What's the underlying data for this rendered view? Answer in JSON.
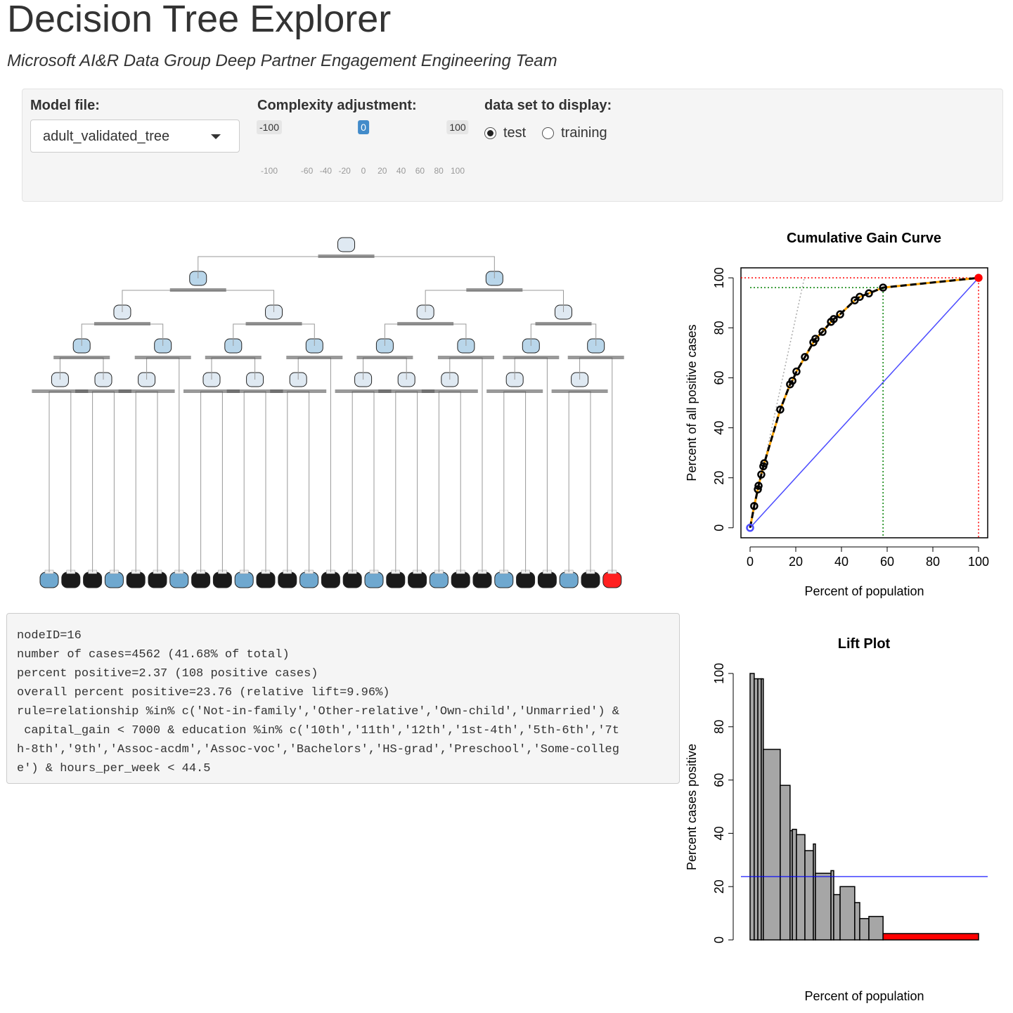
{
  "header": {
    "title": "Decision Tree Explorer",
    "subtitle": "Microsoft AI&R Data Group Deep Partner Engagement Engineering Team"
  },
  "controls": {
    "model_file": {
      "label": "Model file:",
      "value": "adult_validated_tree"
    },
    "complexity": {
      "label": "Complexity adjustment:",
      "min": -100,
      "max": 100,
      "value": 0,
      "ticks": [
        -100,
        -60,
        -40,
        -20,
        0,
        20,
        40,
        60,
        80,
        100
      ]
    },
    "dataset": {
      "label": "data set to display:",
      "options": [
        "test",
        "training"
      ],
      "selected": "test"
    }
  },
  "node_info": {
    "lines": [
      "nodeID=16",
      "number of cases=4562 (41.68% of total)",
      "percent positive=2.37 (108 positive cases)",
      "overall percent positive=23.76 (relative lift=9.96%)",
      "rule=relationship %in% c('Not-in-family','Other-relative','Own-child','Unmarried') &",
      " capital_gain < 7000 & education %in% c('10th','11th','12th','1st-4th','5th-6th','7t",
      "h-8th','9th','Assoc-acdm','Assoc-voc','Bachelors','HS-grad','Preschool','Some-colleg",
      "e') & hours_per_week < 44.5"
    ]
  },
  "chart_data": [
    {
      "type": "line",
      "title": "Cumulative Gain Curve",
      "xlabel": "Percent of population",
      "ylabel": "Percent of all positive cases",
      "xlim": [
        -4,
        104
      ],
      "ylim": [
        -4,
        104
      ],
      "xticks": [
        0,
        20,
        40,
        60,
        80,
        100
      ],
      "yticks": [
        0,
        20,
        40,
        60,
        80,
        100
      ],
      "x": [
        0,
        1.8,
        3.4,
        3.7,
        4.9,
        5.8,
        6.2,
        13.2,
        17.5,
        18.5,
        20.3,
        24,
        27.7,
        28.6,
        31.7,
        35.4,
        36.6,
        39.4,
        45.8,
        48,
        52,
        58.2,
        100
      ],
      "values": [
        0,
        8.7,
        15.4,
        16.8,
        21.3,
        24.6,
        25.8,
        47.3,
        57.4,
        58.8,
        62.5,
        68.3,
        74.2,
        75.6,
        78.4,
        82.4,
        83.5,
        85.4,
        91,
        92.4,
        93.8,
        96.1,
        100
      ],
      "color": "#000000",
      "smooth_color": "#ffa500",
      "end_color": "#ff0000",
      "guides": [
        {
          "x": [
            0,
            100
          ],
          "values": [
            0,
            100
          ],
          "color": "#4b4bff",
          "dash": "solid"
        },
        {
          "x": [
            0,
            23.76
          ],
          "values": [
            0,
            100
          ],
          "color": "#aaaaaa",
          "dash": "dotted"
        },
        {
          "x": [
            -4,
            100,
            100
          ],
          "values": [
            100,
            100,
            -4
          ],
          "color": "#ff0000",
          "dash": "dotted"
        },
        {
          "x": [
            0,
            58.2,
            58.2
          ],
          "values": [
            96.1,
            96.1,
            -4
          ],
          "color": "#008000",
          "dash": "dotted"
        }
      ]
    },
    {
      "type": "histogram",
      "title": "Lift Plot",
      "xlabel": "Percent of population",
      "ylabel": "Percent cases positive",
      "xlim": [
        -4,
        104
      ],
      "ylim": [
        0,
        100
      ],
      "yticks": [
        0,
        20,
        40,
        60,
        80,
        100
      ],
      "bins": [
        0,
        1.8,
        3.4,
        4.9,
        5.8,
        13.2,
        17.5,
        18.5,
        20.3,
        24,
        27.7,
        28.6,
        35.4,
        36.6,
        39.4,
        45.8,
        48,
        52,
        58.2,
        100
      ],
      "values": [
        100,
        98,
        98,
        98,
        71.5,
        58,
        41,
        41.5,
        39.5,
        33.5,
        36,
        25,
        26,
        17,
        20,
        14,
        8,
        8.8,
        2.37
      ],
      "colors": [
        "#a6a6a6",
        "#a6a6a6",
        "#a6a6a6",
        "#a6a6a6",
        "#a6a6a6",
        "#a6a6a6",
        "#a6a6a6",
        "#a6a6a6",
        "#a6a6a6",
        "#a6a6a6",
        "#a6a6a6",
        "#a6a6a6",
        "#a6a6a6",
        "#a6a6a6",
        "#a6a6a6",
        "#a6a6a6",
        "#a6a6a6",
        "#a6a6a6",
        "#ff0000"
      ],
      "reference_line": 23.76,
      "reference_color": "#0000ff"
    }
  ]
}
